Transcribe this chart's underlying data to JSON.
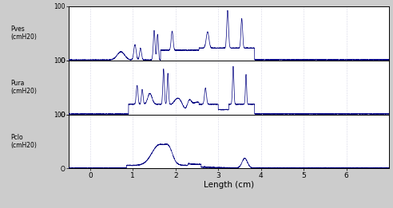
{
  "xlabel": "Length (cm)",
  "xlim": [
    -0.5,
    7.0
  ],
  "xticks": [
    0,
    1,
    2,
    3,
    4,
    5,
    6
  ],
  "panel_labels": [
    "Pves\n(cmH20)",
    "Pura\n(cmH20)",
    "Pclo\n(cmH20)"
  ],
  "ylim": [
    0,
    100
  ],
  "ytick_vals": [
    0,
    100
  ],
  "ytick_labels": [
    "O",
    "100"
  ],
  "background_color": "#ffffff",
  "grid_color": "#aaaacc",
  "line_color": "#000080",
  "fig_bg": "#cccccc",
  "subplot_bg": "#f8f8f8"
}
